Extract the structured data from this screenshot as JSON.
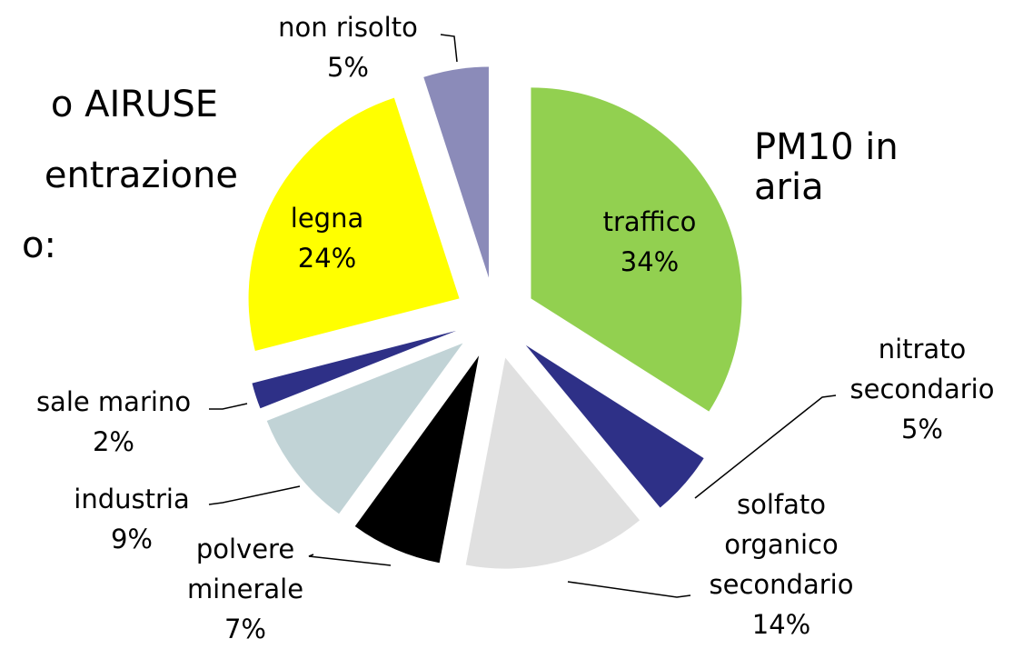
{
  "notes": [
    "o AIRUSE",
    "entrazione",
    "o:"
  ],
  "chart_data": {
    "type": "pie",
    "title": "PM10 in aria",
    "categories": [
      "traffico",
      "nitrato secondario",
      "solfato organico secondario",
      "polvere minerale",
      "industria",
      "sale marino",
      "legna",
      "non risolto"
    ],
    "values": [
      34,
      5,
      14,
      7,
      9,
      2,
      24,
      5
    ],
    "value_labels": [
      "34%",
      "5%",
      "14%",
      "7%",
      "9%",
      "2%",
      "24%",
      "5%"
    ],
    "colors": [
      "#92d050",
      "#2e3087",
      "#e0e0e0",
      "#000000",
      "#c1d3d6",
      "#2e3087",
      "#ffff00",
      "#8b8bb9"
    ]
  }
}
